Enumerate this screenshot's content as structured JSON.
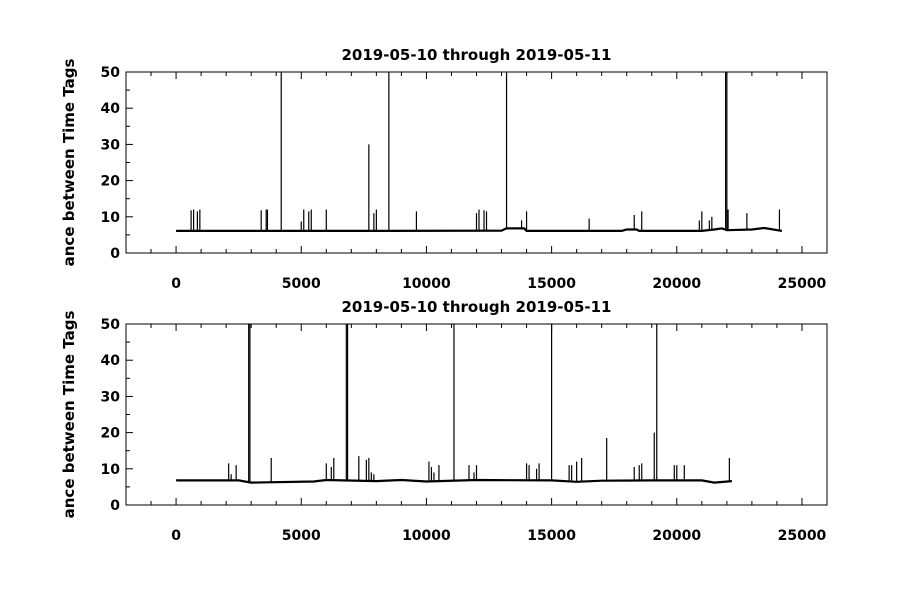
{
  "chart_data": [
    {
      "type": "line",
      "title": "2019-05-10 through 2019-05-11",
      "ylabel": "ance between Time Tags",
      "xlim": [
        -2000,
        26000
      ],
      "ylim": [
        0,
        50
      ],
      "xticks": [
        0,
        5000,
        10000,
        15000,
        20000,
        25000
      ],
      "xtick_labels": [
        "0",
        "5000",
        "10000",
        "15000",
        "20000",
        "25000"
      ],
      "yticks": [
        0,
        10,
        20,
        30,
        40,
        50
      ],
      "ytick_labels": [
        "0",
        "10",
        "20",
        "30",
        "40",
        "50"
      ],
      "series": [
        {
          "baseline": [
            [
              0,
              6.1
            ],
            [
              4200,
              6.1
            ],
            [
              8500,
              6.1
            ],
            [
              13000,
              6.2
            ],
            [
              13200,
              6.8
            ],
            [
              13900,
              6.8
            ],
            [
              14000,
              6.1
            ],
            [
              16500,
              6.1
            ],
            [
              17800,
              6.1
            ],
            [
              18000,
              6.5
            ],
            [
              18400,
              6.5
            ],
            [
              18500,
              6.1
            ],
            [
              21000,
              6.1
            ],
            [
              21500,
              6.5
            ],
            [
              21800,
              6.8
            ],
            [
              22000,
              6.3
            ],
            [
              23000,
              6.5
            ],
            [
              23500,
              6.9
            ],
            [
              24200,
              6.1
            ]
          ],
          "x": [
            600,
            700,
            850,
            950,
            3400,
            3600,
            3650,
            4200,
            5000,
            5100,
            5300,
            5400,
            6000,
            7700,
            7900,
            8000,
            8500,
            9600,
            12000,
            12100,
            12300,
            12400,
            13200,
            13800,
            14000,
            16500,
            18300,
            18600,
            20900,
            21000,
            21300,
            21400,
            21950,
            22000,
            22050,
            22800,
            24100
          ],
          "y": [
            11.8,
            12.0,
            11.5,
            12.0,
            11.8,
            12.0,
            12.0,
            50,
            8.7,
            12.0,
            11.5,
            12.0,
            12.0,
            30.0,
            11.0,
            12.0,
            50,
            11.5,
            11.0,
            12.0,
            11.8,
            11.5,
            50,
            9.0,
            11.5,
            9.5,
            10.5,
            11.5,
            9.0,
            11.5,
            9.0,
            10.0,
            50,
            50,
            12.0,
            11.0,
            12.0
          ]
        }
      ]
    },
    {
      "type": "line",
      "title": "2019-05-10 through 2019-05-11",
      "ylabel": "ance between Time Tags",
      "xlim": [
        -2000,
        26000
      ],
      "ylim": [
        0,
        50
      ],
      "xticks": [
        0,
        5000,
        10000,
        15000,
        20000,
        25000
      ],
      "xtick_labels": [
        "0",
        "5000",
        "10000",
        "15000",
        "20000",
        "25000"
      ],
      "yticks": [
        0,
        10,
        20,
        30,
        40,
        50
      ],
      "ytick_labels": [
        "0",
        "10",
        "20",
        "30",
        "40",
        "50"
      ],
      "series": [
        {
          "baseline": [
            [
              0,
              6.8
            ],
            [
              2500,
              6.8
            ],
            [
              3000,
              6.2
            ],
            [
              5500,
              6.5
            ],
            [
              6000,
              6.9
            ],
            [
              8000,
              6.6
            ],
            [
              9000,
              6.9
            ],
            [
              10000,
              6.5
            ],
            [
              12000,
              6.9
            ],
            [
              15000,
              6.8
            ],
            [
              16000,
              6.4
            ],
            [
              17000,
              6.7
            ],
            [
              19000,
              6.8
            ],
            [
              21000,
              6.8
            ],
            [
              21500,
              6.2
            ],
            [
              22200,
              6.6
            ]
          ],
          "x": [
            2100,
            2200,
            2400,
            2900,
            2950,
            3800,
            6000,
            6200,
            6300,
            6800,
            6850,
            7300,
            7600,
            7700,
            7800,
            7900,
            10100,
            10200,
            10300,
            10500,
            11100,
            11700,
            11900,
            12000,
            14000,
            14100,
            14400,
            14500,
            15000,
            15700,
            15800,
            16000,
            16200,
            17200,
            18300,
            18500,
            18600,
            19100,
            19200,
            19900,
            20000,
            20300,
            22100
          ],
          "y": [
            11.5,
            8.5,
            11.0,
            50,
            50,
            13.0,
            11.5,
            10.5,
            13.0,
            50,
            50,
            13.5,
            12.5,
            13.0,
            9.0,
            8.5,
            12.0,
            10.5,
            9.0,
            11.0,
            50,
            11.0,
            9.0,
            11.0,
            11.5,
            11.0,
            10.0,
            11.5,
            50,
            11.0,
            11.0,
            12.0,
            13.0,
            18.5,
            10.5,
            11.0,
            11.5,
            20.0,
            50,
            11.0,
            11.0,
            11.0,
            13.0
          ]
        }
      ]
    }
  ]
}
